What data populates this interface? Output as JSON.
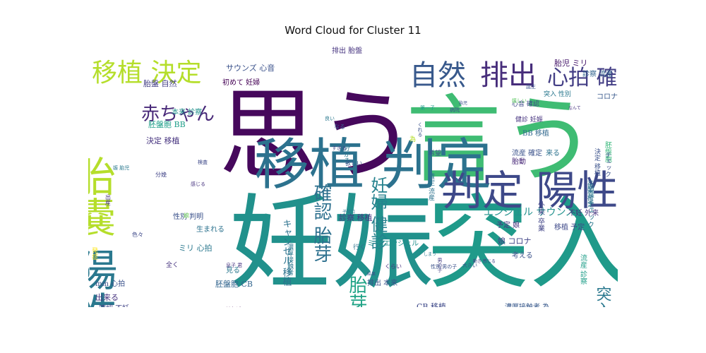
{
  "chart_data": {
    "type": "wordcloud",
    "title": "Word Cloud for Cluster 11",
    "words": [
      {
        "text": "思う",
        "weight": 100,
        "color": "#46085c"
      },
      {
        "text": "言う",
        "weight": 100,
        "color": "#3fbc73"
      },
      {
        "text": "妊娠",
        "weight": 100,
        "color": "#21918c"
      },
      {
        "text": "突入",
        "weight": 100,
        "color": "#1f9a8a"
      },
      {
        "text": "移植 判定",
        "weight": 82,
        "color": "#2c728e"
      },
      {
        "text": "陽性",
        "weight": 62,
        "color": "#2a788e"
      },
      {
        "text": "胎嚢",
        "weight": 60,
        "color": "#b5de2b"
      },
      {
        "text": "判定 陽性",
        "weight": 58,
        "color": "#3e4989"
      },
      {
        "text": "自然",
        "weight": 40,
        "color": "#38598c"
      },
      {
        "text": "排出",
        "weight": 40,
        "color": "#472d7b"
      },
      {
        "text": "移植 決定",
        "weight": 36,
        "color": "#b5de2b"
      },
      {
        "text": "心拍 確認",
        "weight": 30,
        "color": "#433e85"
      },
      {
        "text": "赤ちゃん",
        "weight": 26,
        "color": "#482878"
      },
      {
        "text": "確認 胎芽",
        "weight": 26,
        "color": "#2d708e"
      },
      {
        "text": "妊婦 健診",
        "weight": 24,
        "color": "#26828e"
      },
      {
        "text": "胎芽 ミリ",
        "weight": 26,
        "color": "#20a386"
      },
      {
        "text": "突入 妊娠",
        "weight": 22,
        "color": "#2a788e"
      },
      {
        "text": "キャンセル 移植",
        "weight": 13,
        "color": "#2c728e"
      },
      {
        "text": "エンジェル サウンズ",
        "weight": 14,
        "color": "#21918c"
      },
      {
        "text": "サウンズ 心音",
        "weight": 11,
        "color": "#3b528b"
      },
      {
        "text": "初めて 妊婦",
        "weight": 10,
        "color": "#440154"
      },
      {
        "text": "胎盤 自然",
        "weight": 11,
        "color": "#433e85"
      },
      {
        "text": "本来 診察",
        "weight": 10,
        "color": "#21918c"
      },
      {
        "text": "胚盤胞 BB",
        "weight": 11,
        "color": "#1f9e89"
      },
      {
        "text": "決定 移植",
        "weight": 11,
        "color": "#46337f"
      },
      {
        "text": "性別 判明",
        "weight": 10,
        "color": "#3b528b"
      },
      {
        "text": "生まれる",
        "weight": 10,
        "color": "#2c728e"
      },
      {
        "text": "ミリ 心拍",
        "weight": 11,
        "color": "#2a788e"
      },
      {
        "text": "mm 心拍",
        "weight": 10,
        "color": "#3b528b"
      },
      {
        "text": "出来る",
        "weight": 11,
        "color": "#46337f"
      },
      {
        "text": "確認 不妊",
        "weight": 10,
        "color": "#414487"
      },
      {
        "text": "胚盤胞 CB",
        "weight": 11,
        "color": "#32658e"
      },
      {
        "text": "見る",
        "weight": 10,
        "color": "#2a788e"
      },
      {
        "text": "診察 移植",
        "weight": 11,
        "color": "#453781"
      },
      {
        "text": "排出 胎盤",
        "weight": 10,
        "color": "#46337f"
      },
      {
        "text": "ミリ エンジェル",
        "weight": 10,
        "color": "#21918c"
      },
      {
        "text": "排出 本来",
        "weight": 10,
        "color": "#3b528b"
      },
      {
        "text": "CB 移植",
        "weight": 11,
        "color": "#3e4989"
      },
      {
        "text": "濃厚接触者 為",
        "weight": 10,
        "color": "#38598c"
      },
      {
        "text": "予定 娘",
        "weight": 10,
        "color": "#46337f"
      },
      {
        "text": "娘 コロナ",
        "weight": 11,
        "color": "#414487"
      },
      {
        "text": "考える",
        "weight": 10,
        "color": "#3b528b"
      },
      {
        "text": "移植 予定",
        "weight": 10,
        "color": "#3e4989"
      },
      {
        "text": "不妊 外来",
        "weight": 10,
        "color": "#46337f"
      },
      {
        "text": "流産 確定",
        "weight": 10,
        "color": "#3b528b"
      },
      {
        "text": "胎動",
        "weight": 10,
        "color": "#482878"
      },
      {
        "text": "来る",
        "weight": 10,
        "color": "#2c728e"
      },
      {
        "text": "BB 移植",
        "weight": 10,
        "color": "#31688e"
      },
      {
        "text": "胎児 ミリ",
        "weight": 11,
        "color": "#481a6c"
      },
      {
        "text": "突入 性別",
        "weight": 9,
        "color": "#2a788e"
      },
      {
        "text": "心音 確認",
        "weight": 9,
        "color": "#3e4989"
      },
      {
        "text": "健診 妊娠",
        "weight": 9,
        "color": "#46337f"
      },
      {
        "text": "診察 流産",
        "weight": 10,
        "color": "#32658e"
      },
      {
        "text": "コロナ 発症",
        "weight": 10,
        "color": "#38598c"
      },
      {
        "text": "胚盤胞",
        "weight": 10,
        "color": "#35b779"
      },
      {
        "text": "チェック",
        "weight": 9,
        "color": "#3b528b"
      },
      {
        "text": "胎嚢 チェック",
        "weight": 10,
        "color": "#2a788e"
      },
      {
        "text": "外来 卒業",
        "weight": 10,
        "color": "#414487"
      },
      {
        "text": "流産 診察",
        "weight": 10,
        "color": "#1f9e89"
      },
      {
        "text": "卒業 確定",
        "weight": 9,
        "color": "#2d708e"
      },
      {
        "text": "決定 移植",
        "weight": 9,
        "color": "#3b528b"
      },
      {
        "text": "確定 流産",
        "weight": 9,
        "color": "#2c728e"
      },
      {
        "text": "希望",
        "weight": 9,
        "color": "#3b528b"
      },
      {
        "text": "為",
        "weight": 9,
        "color": "#b5de2b"
      },
      {
        "text": "色々",
        "weight": 8,
        "color": "#3e4989"
      },
      {
        "text": "全く",
        "weight": 9,
        "color": "#46337f"
      },
      {
        "text": "行く",
        "weight": 9,
        "color": "#2c728e"
      },
      {
        "text": "分かる",
        "weight": 9,
        "color": "#2a788e"
      },
      {
        "text": "欲しい",
        "weight": 8,
        "color": "#3b528b"
      },
      {
        "text": "なる",
        "weight": 8,
        "color": "#38598c"
      },
      {
        "text": "娘",
        "weight": 8,
        "color": "#6ece58"
      },
      {
        "text": "出産",
        "weight": 8,
        "color": "#46337f"
      },
      {
        "text": "発症",
        "weight": 9,
        "color": "#fde725"
      },
      {
        "text": "濃厚接触者",
        "weight": 9,
        "color": "#2a788e"
      },
      {
        "text": "分娩",
        "weight": 8,
        "color": "#414487"
      },
      {
        "text": "くらい",
        "weight": 8,
        "color": "#46337f"
      },
      {
        "text": "大きい",
        "weight": 7,
        "color": "#3b528b"
      },
      {
        "text": "息子 君",
        "weight": 7,
        "color": "#46337f"
      },
      {
        "text": "けれど",
        "weight": 7,
        "color": "#440154"
      },
      {
        "text": "いける",
        "weight": 6,
        "color": "#3b528b"
      },
      {
        "text": "しまう",
        "weight": 6,
        "color": "#2a788e"
      },
      {
        "text": "男の子",
        "weight": 7,
        "color": "#433e85"
      },
      {
        "text": "性別 男の子",
        "weight": 7,
        "color": "#3b528b"
      },
      {
        "text": "第一子",
        "weight": 7,
        "color": "#1f9e89"
      },
      {
        "text": "検査",
        "weight": 7,
        "color": "#3e4989"
      },
      {
        "text": "誕生",
        "weight": 7,
        "color": "#3b528b"
      },
      {
        "text": "感じる",
        "weight": 7,
        "color": "#46337f"
      },
      {
        "text": "すぎる",
        "weight": 7,
        "color": "#414487"
      },
      {
        "text": "良い",
        "weight": 7,
        "color": "#2a788e"
      },
      {
        "text": "病院",
        "weight": 7,
        "color": "#3b528b"
      },
      {
        "text": "子宮口",
        "weight": 6,
        "color": "#2c728e"
      },
      {
        "text": "結果",
        "weight": 6,
        "color": "#3b528b"
      },
      {
        "text": "嬉しい",
        "weight": 7,
        "color": "#5ec962"
      },
      {
        "text": "なんて",
        "weight": 6,
        "color": "#46337f"
      },
      {
        "text": "くれる",
        "weight": 7,
        "color": "#3b528b"
      },
      {
        "text": "動き 感じる",
        "weight": 6,
        "color": "#414487"
      },
      {
        "text": "娠 胎児",
        "weight": 7,
        "color": "#2a788e"
      },
      {
        "text": "胎児",
        "weight": 6,
        "color": "#3b528b"
      }
    ]
  }
}
